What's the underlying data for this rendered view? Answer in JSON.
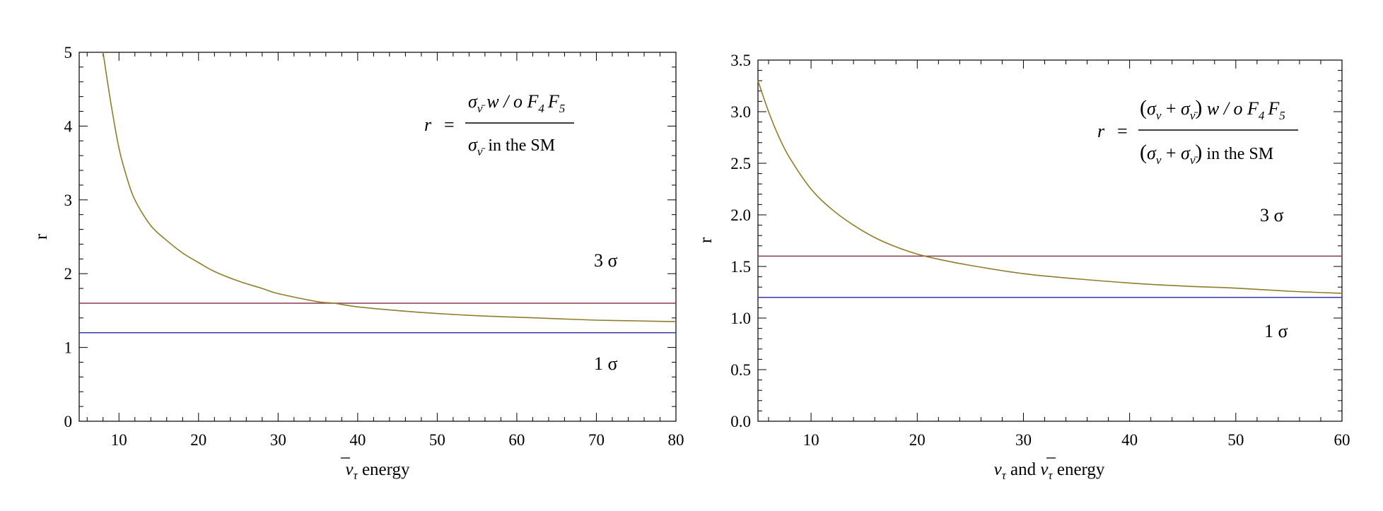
{
  "chart_data": [
    {
      "type": "line",
      "xlabel_bar": "ν",
      "xlabel_sub": "τ",
      "xlabel_rest": " energy",
      "ylabel": "r",
      "xlim": [
        5,
        80
      ],
      "ylim": [
        0,
        5
      ],
      "xticks": [
        10,
        20,
        30,
        40,
        50,
        60,
        70,
        80
      ],
      "yticks": [
        0,
        1,
        2,
        3,
        4,
        5
      ],
      "ytick_labels": [
        "0",
        "1",
        "2",
        "3",
        "4",
        "5"
      ],
      "grid": false,
      "formula": {
        "lhs": "r",
        "eq": "=",
        "num": {
          "sigma": "σ",
          "sigma_sub": "ν̄",
          "rest": "w / o F",
          "f4": "4",
          "f": "F",
          "f5": "5"
        },
        "den": {
          "sigma": "σ",
          "sigma_sub": "ν̄",
          "rest": "in the SM"
        }
      },
      "hlines": [
        {
          "label": "3 σ",
          "y": 1.6,
          "color": "#8b3a50"
        },
        {
          "label": "1 σ",
          "y": 1.2,
          "color": "#3b3ba8"
        }
      ],
      "series": [
        {
          "color": "#8f7d2a",
          "x": [
            8,
            9,
            10,
            11,
            12,
            14,
            16,
            18,
            20,
            22,
            25,
            28,
            30,
            35,
            37,
            40,
            45,
            50,
            55,
            60,
            65,
            70,
            75,
            80
          ],
          "y": [
            5.0,
            4.3,
            3.7,
            3.3,
            3.0,
            2.65,
            2.45,
            2.28,
            2.15,
            2.03,
            1.9,
            1.8,
            1.73,
            1.62,
            1.6,
            1.55,
            1.5,
            1.46,
            1.43,
            1.41,
            1.39,
            1.37,
            1.36,
            1.35
          ]
        }
      ]
    },
    {
      "type": "line",
      "xlabel_nu": "ν",
      "xlabel_sub": "τ",
      "xlabel_and": " and ",
      "xlabel_bar": "ν",
      "xlabel_sub2": "τ",
      "xlabel_rest": " energy",
      "ylabel": "r",
      "xlim": [
        5,
        60
      ],
      "ylim": [
        0,
        3.5
      ],
      "xticks": [
        10,
        20,
        30,
        40,
        50,
        60
      ],
      "yticks": [
        0,
        0.5,
        1,
        1.5,
        2,
        2.5,
        3,
        3.5
      ],
      "ytick_labels": [
        "0.0",
        "0.5",
        "1.0",
        "1.5",
        "2.0",
        "2.5",
        "3.0",
        "3.5"
      ],
      "grid": false,
      "formula": {
        "lhs": "r",
        "eq": "=",
        "num": {
          "open": "(",
          "sigma1": "σ",
          "sub1": "ν",
          "plus": " + ",
          "sigma2": "σ",
          "sub2": "ν̄",
          "close": ")",
          "rest": " w / o F",
          "f4": "4",
          "f": "F",
          "f5": "5"
        },
        "den": {
          "open": "(",
          "sigma1": "σ",
          "sub1": "ν",
          "plus": " + ",
          "sigma2": "σ",
          "sub2": "ν̄",
          "close": ")",
          "rest": " in the SM"
        }
      },
      "hlines": [
        {
          "label": "3 σ",
          "y": 1.6,
          "color": "#8b3a50"
        },
        {
          "label": "1 σ",
          "y": 1.2,
          "color": "#3b3ba8"
        }
      ],
      "series": [
        {
          "color": "#8f7d2a",
          "x": [
            5,
            6,
            7,
            8,
            10,
            12,
            14,
            16,
            18,
            20,
            22,
            25,
            30,
            35,
            40,
            45,
            50,
            55,
            60
          ],
          "y": [
            3.3,
            3.0,
            2.75,
            2.55,
            2.25,
            2.05,
            1.9,
            1.78,
            1.69,
            1.62,
            1.57,
            1.51,
            1.43,
            1.38,
            1.34,
            1.31,
            1.29,
            1.26,
            1.24
          ]
        }
      ]
    }
  ]
}
